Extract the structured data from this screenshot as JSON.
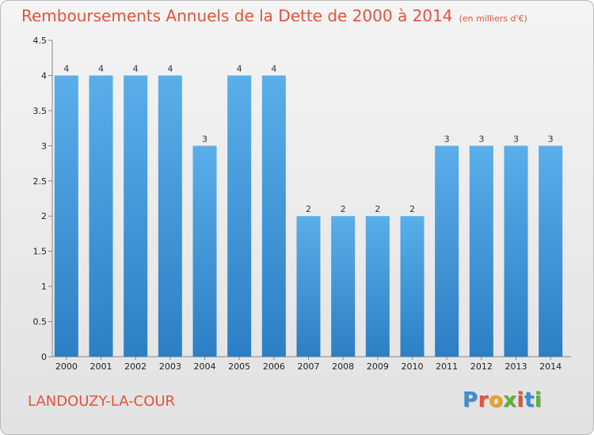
{
  "chart_data": {
    "type": "bar",
    "title": "Remboursements Annuels de la Dette de 2000 à 2014",
    "unit": "(en milliers d'€)",
    "categories": [
      "2000",
      "2001",
      "2002",
      "2003",
      "2004",
      "2005",
      "2006",
      "2007",
      "2008",
      "2009",
      "2010",
      "2011",
      "2012",
      "2013",
      "2014"
    ],
    "values": [
      4,
      4,
      4,
      4,
      3,
      4,
      4,
      2,
      2,
      2,
      2,
      3,
      3,
      3,
      3
    ],
    "ylim": [
      0,
      4.5
    ],
    "yticks": [
      "0",
      "0.5",
      "1",
      "1.5",
      "2",
      "2.5",
      "3",
      "3.5",
      "4",
      "4.5"
    ],
    "grid": false,
    "bar_color": "#4a9fe0"
  },
  "footer": {
    "commune": "LANDOUZY-LA-COUR",
    "logo_text": "Proxiti"
  }
}
